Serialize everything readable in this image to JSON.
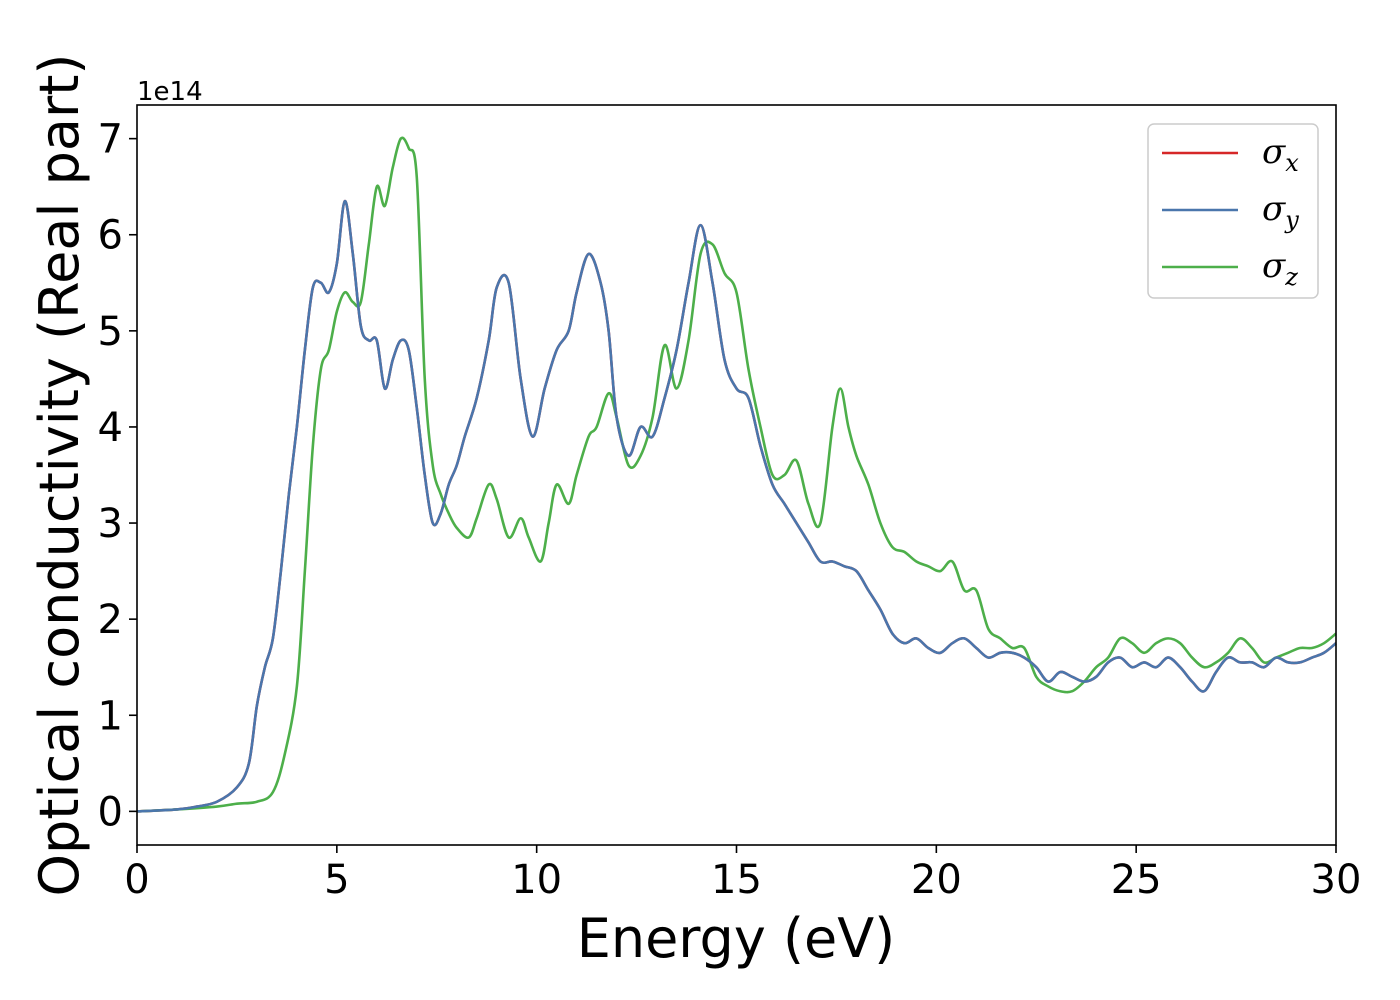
{
  "chart_data": {
    "type": "line",
    "xlabel": "Energy (eV)",
    "ylabel": "Optical conductivity (Real part)",
    "offset_label": "1e14",
    "xlim": [
      0,
      30
    ],
    "ylim": [
      -0.35,
      7.35
    ],
    "x_ticks": [
      0,
      5,
      10,
      15,
      20,
      25,
      30
    ],
    "y_ticks": [
      0,
      1,
      2,
      3,
      4,
      5,
      6,
      7
    ],
    "grid": false,
    "legend_position": "top-right",
    "series": [
      {
        "name": "σ",
        "sub": "x",
        "color": "#d62728",
        "x": [
          0,
          1,
          1.5,
          2,
          2.5,
          2.8,
          3.0,
          3.2,
          3.4,
          3.6,
          3.8,
          4.0,
          4.2,
          4.4,
          4.6,
          4.8,
          5.0,
          5.2,
          5.4,
          5.6,
          5.8,
          6.0,
          6.2,
          6.4,
          6.6,
          6.8,
          7.0,
          7.2,
          7.4,
          7.6,
          7.8,
          8.0,
          8.2,
          8.5,
          8.8,
          9.0,
          9.3,
          9.6,
          9.9,
          10.2,
          10.5,
          10.8,
          11.0,
          11.3,
          11.6,
          11.8,
          12.0,
          12.3,
          12.6,
          12.9,
          13.2,
          13.5,
          13.8,
          14.1,
          14.4,
          14.7,
          15.0,
          15.3,
          15.6,
          15.9,
          16.2,
          16.5,
          16.8,
          17.1,
          17.4,
          17.7,
          18.0,
          18.3,
          18.6,
          18.9,
          19.2,
          19.5,
          19.8,
          20.1,
          20.4,
          20.7,
          21.0,
          21.3,
          21.6,
          21.9,
          22.2,
          22.5,
          22.8,
          23.1,
          23.4,
          23.7,
          24.0,
          24.3,
          24.6,
          24.9,
          25.2,
          25.5,
          25.8,
          26.1,
          26.4,
          26.7,
          27.0,
          27.3,
          27.6,
          27.9,
          28.2,
          28.5,
          28.8,
          29.1,
          29.4,
          29.7,
          30
        ],
        "y": [
          0,
          0.02,
          0.05,
          0.1,
          0.25,
          0.5,
          1.1,
          1.5,
          1.8,
          2.5,
          3.3,
          4.0,
          4.8,
          5.45,
          5.5,
          5.4,
          5.7,
          6.35,
          5.8,
          5.05,
          4.9,
          4.9,
          4.4,
          4.7,
          4.9,
          4.8,
          4.2,
          3.5,
          3.0,
          3.1,
          3.4,
          3.6,
          3.9,
          4.3,
          4.9,
          5.45,
          5.5,
          4.5,
          3.9,
          4.4,
          4.8,
          5.0,
          5.4,
          5.8,
          5.5,
          5.0,
          4.1,
          3.7,
          4.0,
          3.9,
          4.3,
          4.8,
          5.5,
          6.1,
          5.5,
          4.7,
          4.4,
          4.3,
          3.8,
          3.4,
          3.2,
          3.0,
          2.8,
          2.6,
          2.6,
          2.55,
          2.5,
          2.3,
          2.1,
          1.85,
          1.75,
          1.8,
          1.7,
          1.65,
          1.75,
          1.8,
          1.7,
          1.6,
          1.65,
          1.65,
          1.6,
          1.5,
          1.35,
          1.45,
          1.4,
          1.35,
          1.4,
          1.55,
          1.6,
          1.5,
          1.55,
          1.5,
          1.6,
          1.5,
          1.35,
          1.25,
          1.45,
          1.6,
          1.55,
          1.55,
          1.5,
          1.6,
          1.55,
          1.55,
          1.6,
          1.65,
          1.75
        ]
      },
      {
        "name": "σ",
        "sub": "y",
        "color": "#4a76ac",
        "x": [
          0,
          1,
          1.5,
          2,
          2.5,
          2.8,
          3.0,
          3.2,
          3.4,
          3.6,
          3.8,
          4.0,
          4.2,
          4.4,
          4.6,
          4.8,
          5.0,
          5.2,
          5.4,
          5.6,
          5.8,
          6.0,
          6.2,
          6.4,
          6.6,
          6.8,
          7.0,
          7.2,
          7.4,
          7.6,
          7.8,
          8.0,
          8.2,
          8.5,
          8.8,
          9.0,
          9.3,
          9.6,
          9.9,
          10.2,
          10.5,
          10.8,
          11.0,
          11.3,
          11.6,
          11.8,
          12.0,
          12.3,
          12.6,
          12.9,
          13.2,
          13.5,
          13.8,
          14.1,
          14.4,
          14.7,
          15.0,
          15.3,
          15.6,
          15.9,
          16.2,
          16.5,
          16.8,
          17.1,
          17.4,
          17.7,
          18.0,
          18.3,
          18.6,
          18.9,
          19.2,
          19.5,
          19.8,
          20.1,
          20.4,
          20.7,
          21.0,
          21.3,
          21.6,
          21.9,
          22.2,
          22.5,
          22.8,
          23.1,
          23.4,
          23.7,
          24.0,
          24.3,
          24.6,
          24.9,
          25.2,
          25.5,
          25.8,
          26.1,
          26.4,
          26.7,
          27.0,
          27.3,
          27.6,
          27.9,
          28.2,
          28.5,
          28.8,
          29.1,
          29.4,
          29.7,
          30
        ],
        "y": [
          0,
          0.02,
          0.05,
          0.1,
          0.25,
          0.5,
          1.1,
          1.5,
          1.8,
          2.5,
          3.3,
          4.0,
          4.8,
          5.45,
          5.5,
          5.4,
          5.7,
          6.35,
          5.8,
          5.05,
          4.9,
          4.9,
          4.4,
          4.7,
          4.9,
          4.8,
          4.2,
          3.5,
          3.0,
          3.1,
          3.4,
          3.6,
          3.9,
          4.3,
          4.9,
          5.45,
          5.5,
          4.5,
          3.9,
          4.4,
          4.8,
          5.0,
          5.4,
          5.8,
          5.5,
          5.0,
          4.1,
          3.7,
          4.0,
          3.9,
          4.3,
          4.8,
          5.5,
          6.1,
          5.5,
          4.7,
          4.4,
          4.3,
          3.8,
          3.4,
          3.2,
          3.0,
          2.8,
          2.6,
          2.6,
          2.55,
          2.5,
          2.3,
          2.1,
          1.85,
          1.75,
          1.8,
          1.7,
          1.65,
          1.75,
          1.8,
          1.7,
          1.6,
          1.65,
          1.65,
          1.6,
          1.5,
          1.35,
          1.45,
          1.4,
          1.35,
          1.4,
          1.55,
          1.6,
          1.5,
          1.55,
          1.5,
          1.6,
          1.5,
          1.35,
          1.25,
          1.45,
          1.6,
          1.55,
          1.55,
          1.5,
          1.6,
          1.55,
          1.55,
          1.6,
          1.65,
          1.75
        ]
      },
      {
        "name": "σ",
        "sub": "z",
        "color": "#4daf4a",
        "x": [
          0,
          1,
          2,
          2.5,
          3.0,
          3.4,
          3.7,
          4.0,
          4.2,
          4.4,
          4.6,
          4.8,
          5.0,
          5.2,
          5.4,
          5.6,
          5.8,
          6.0,
          6.2,
          6.4,
          6.6,
          6.8,
          7.0,
          7.2,
          7.4,
          7.6,
          7.8,
          8.0,
          8.3,
          8.5,
          8.8,
          9.0,
          9.3,
          9.6,
          9.8,
          10.1,
          10.3,
          10.5,
          10.8,
          11.0,
          11.3,
          11.5,
          11.8,
          12.0,
          12.3,
          12.6,
          12.9,
          13.2,
          13.5,
          13.8,
          14.1,
          14.4,
          14.7,
          15.0,
          15.3,
          15.6,
          15.9,
          16.2,
          16.5,
          16.8,
          17.1,
          17.4,
          17.6,
          17.8,
          18.0,
          18.3,
          18.6,
          18.9,
          19.2,
          19.5,
          19.8,
          20.1,
          20.4,
          20.7,
          21.0,
          21.3,
          21.6,
          21.9,
          22.2,
          22.5,
          22.8,
          23.1,
          23.4,
          23.7,
          24.0,
          24.3,
          24.6,
          24.9,
          25.2,
          25.5,
          25.8,
          26.1,
          26.4,
          26.7,
          27.0,
          27.3,
          27.6,
          27.9,
          28.2,
          28.5,
          28.8,
          29.1,
          29.4,
          29.7,
          30
        ],
        "y": [
          0,
          0.02,
          0.05,
          0.08,
          0.1,
          0.2,
          0.6,
          1.3,
          2.5,
          3.8,
          4.6,
          4.8,
          5.2,
          5.4,
          5.3,
          5.3,
          5.9,
          6.5,
          6.3,
          6.7,
          7.0,
          6.9,
          6.6,
          4.5,
          3.6,
          3.3,
          3.1,
          2.95,
          2.85,
          3.05,
          3.4,
          3.25,
          2.85,
          3.05,
          2.85,
          2.6,
          3.0,
          3.4,
          3.2,
          3.5,
          3.9,
          4.0,
          4.35,
          4.1,
          3.6,
          3.7,
          4.1,
          4.85,
          4.4,
          4.9,
          5.8,
          5.9,
          5.6,
          5.4,
          4.6,
          4.0,
          3.5,
          3.5,
          3.65,
          3.2,
          3.0,
          4.0,
          4.4,
          4.0,
          3.7,
          3.4,
          3.0,
          2.75,
          2.7,
          2.6,
          2.55,
          2.5,
          2.6,
          2.3,
          2.3,
          1.9,
          1.8,
          1.7,
          1.7,
          1.4,
          1.3,
          1.25,
          1.25,
          1.35,
          1.5,
          1.6,
          1.8,
          1.75,
          1.65,
          1.75,
          1.8,
          1.75,
          1.6,
          1.5,
          1.55,
          1.65,
          1.8,
          1.7,
          1.55,
          1.6,
          1.65,
          1.7,
          1.7,
          1.75,
          1.85
        ]
      }
    ]
  }
}
